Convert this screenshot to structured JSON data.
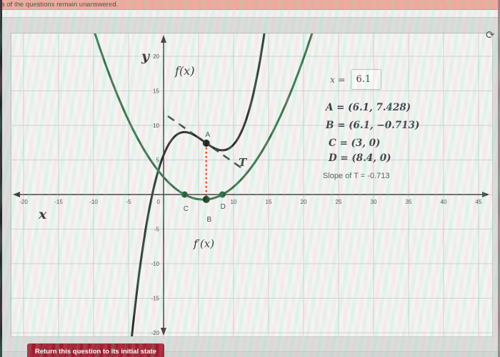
{
  "alert_bar": {
    "text": "s of the questions remain unanswered."
  },
  "icons": {
    "refresh_glyph": "⟳"
  },
  "chart_data": {
    "type": "line",
    "xlabel": "x",
    "ylabel": "y",
    "xlim": [
      -21.5,
      46.5
    ],
    "ylim": [
      -20.5,
      23.5
    ],
    "grid": true,
    "grid_step": 5,
    "x_ticks": [
      -20,
      -15,
      -10,
      -5,
      0,
      10,
      15,
      20,
      25,
      30,
      35,
      40,
      45
    ],
    "y_ticks": [
      20,
      15,
      10,
      5,
      -5,
      -10,
      -15,
      -20
    ],
    "curves": [
      {
        "name": "f(x)",
        "poly": [
          5.7,
          2.52,
          -0.57,
          0.0333333
        ],
        "domain": [
          -4.8,
          14.6
        ],
        "color": "#2b2b2b"
      },
      {
        "name": "f′(x)",
        "poly": [
          2.52,
          -1.14,
          0.1
        ],
        "domain": [
          -10.4,
          21.8
        ],
        "color": "#35714a"
      }
    ],
    "tangent": {
      "label": "T",
      "slope": -0.713,
      "point": [
        6.1,
        7.428
      ],
      "domain": [
        0.6,
        11.7
      ],
      "color": "#3e564c",
      "style": "dashed"
    },
    "connector": {
      "from": "A",
      "to": "B",
      "color": "#d9472b",
      "style": "dotted"
    },
    "points": [
      {
        "name": "A",
        "x": 6.1,
        "y": 7.428,
        "color": "#1f1f1f",
        "draggable": true
      },
      {
        "name": "B",
        "x": 6.1,
        "y": -0.713,
        "color": "#1d3b27",
        "draggable": false
      },
      {
        "name": "C",
        "x": 3,
        "y": 0,
        "color": "#26603c",
        "draggable": false
      },
      {
        "name": "D",
        "x": 8.4,
        "y": 0,
        "color": "#26603c",
        "draggable": false
      }
    ]
  },
  "readout": {
    "x_label": "x =",
    "x_value": "6.1",
    "lines": [
      {
        "text": "A = (6.1, 7.428)"
      },
      {
        "text": "B = (6.1, −0.713)"
      },
      {
        "text": "C = (3, 0)"
      },
      {
        "text": "D = (8.4, 0)"
      }
    ],
    "slope_text": "Slope of T = -0.713"
  },
  "reset_button": {
    "label": "Return this question to its initial state"
  }
}
